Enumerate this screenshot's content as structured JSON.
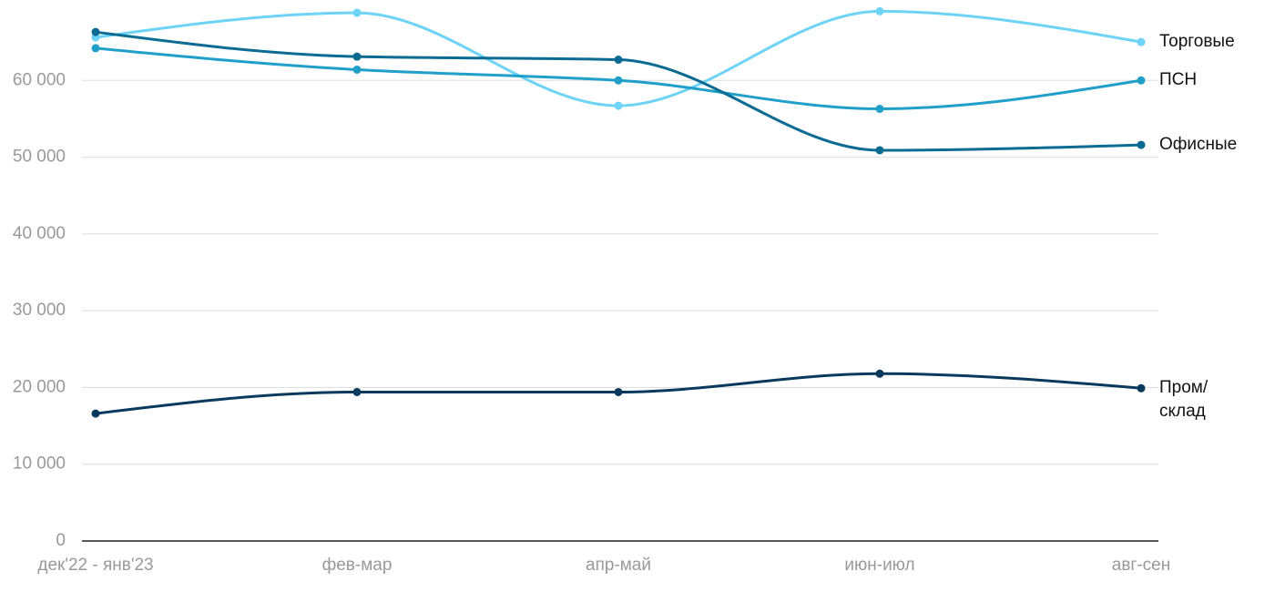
{
  "chart_data": {
    "type": "line",
    "categories": [
      "дек'22 - янв'23",
      "фев-мар",
      "апр-май",
      "июн-июл",
      "авг-сен"
    ],
    "series": [
      {
        "name": "Торговые",
        "color": "#6dd3f7",
        "values": [
          65600,
          68800,
          56700,
          69000,
          65000
        ]
      },
      {
        "name": "ПСН",
        "color": "#1f9fc9",
        "values": [
          64200,
          61400,
          60000,
          56300,
          60000
        ]
      },
      {
        "name": "Офисные",
        "color": "#0b6b93",
        "values": [
          66300,
          63100,
          62700,
          50900,
          51600
        ]
      },
      {
        "name": "Пром/склад",
        "color": "#093a5d",
        "values": [
          16600,
          19400,
          19400,
          21800,
          19900
        ]
      }
    ],
    "ylim": [
      0,
      70000
    ],
    "yticks": [
      0,
      {
        "value": 10000,
        "label": "10 000"
      },
      {
        "value": 20000,
        "label": "20 000"
      },
      {
        "value": 30000,
        "label": "30 000"
      },
      {
        "value": 40000,
        "label": "40 000"
      },
      {
        "value": 50000,
        "label": "50 000"
      },
      {
        "value": 60000,
        "label": "60 000"
      }
    ],
    "grid": true
  }
}
